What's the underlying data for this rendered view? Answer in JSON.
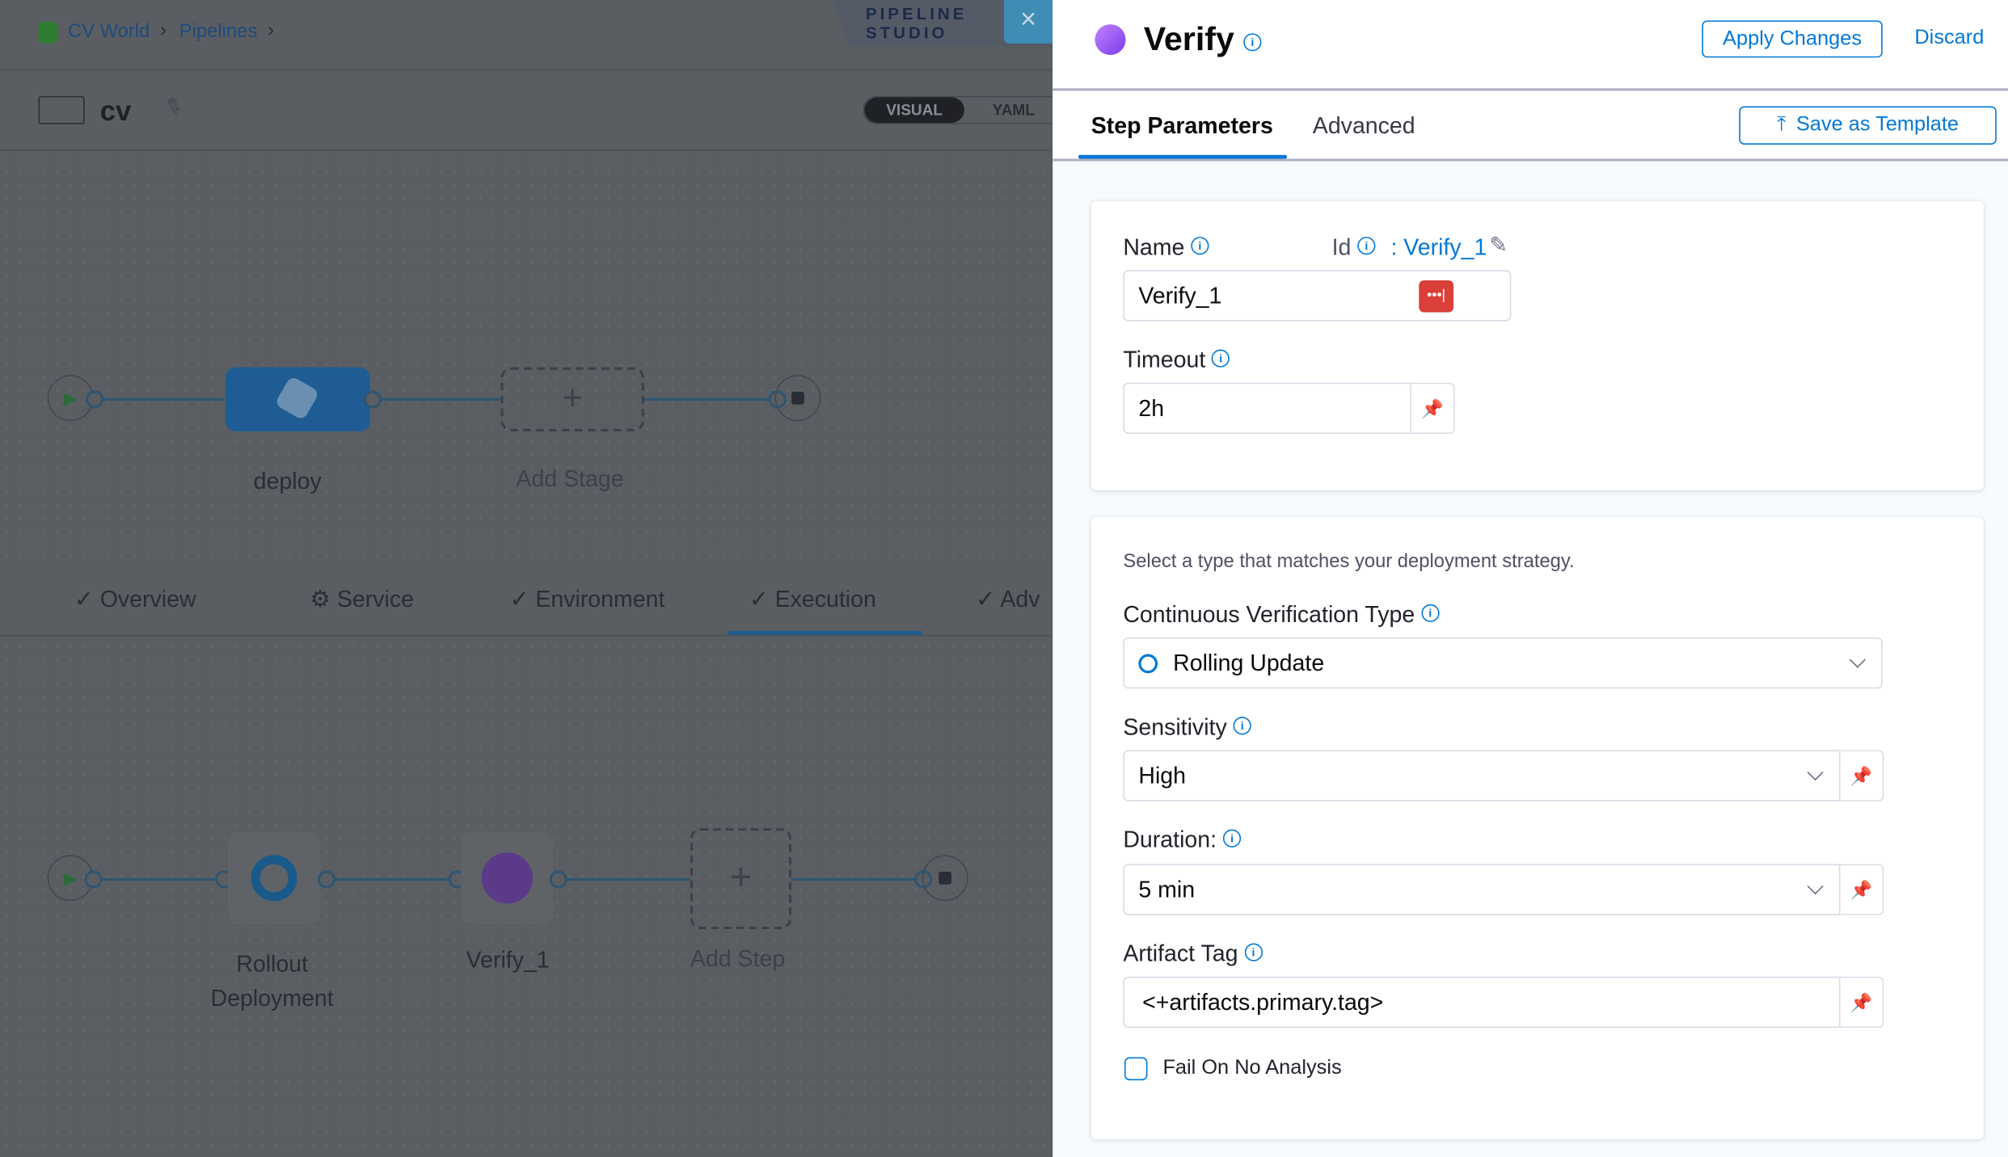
{
  "breadcrumb": {
    "items": [
      "CV World",
      "Pipelines"
    ]
  },
  "studio": {
    "label": "PIPELINE STUDIO",
    "close": "×"
  },
  "pipeline": {
    "name": "cv",
    "view_toggle": [
      "VISUAL",
      "YAML"
    ],
    "active_view": "VISUAL"
  },
  "stages": {
    "items": [
      {
        "label": "deploy"
      }
    ],
    "add_label": "Add Stage"
  },
  "stage_tabs": [
    {
      "label": "Overview",
      "icon": "check-icon"
    },
    {
      "label": "Service",
      "icon": "gear-icon"
    },
    {
      "label": "Environment",
      "icon": "check-icon"
    },
    {
      "label": "Execution",
      "icon": "check-icon",
      "active": true
    },
    {
      "label": "Adv",
      "icon": "check-icon"
    }
  ],
  "steps": {
    "items": [
      {
        "label": "Rollout Deployment"
      },
      {
        "label": "Verify_1"
      }
    ],
    "add_label": "Add Step"
  },
  "panel": {
    "title": "Verify",
    "apply_label": "Apply Changes",
    "discard_label": "Discard",
    "tabs": [
      "Step Parameters",
      "Advanced"
    ],
    "active_tab": "Step Parameters",
    "save_template_label": "Save as Template",
    "name_label": "Name",
    "id_label": "Id",
    "id_value": ": Verify_1",
    "name_value": "Verify_1",
    "timeout_label": "Timeout",
    "timeout_value": "2h",
    "strategy_hint": "Select a type that matches your deployment strategy.",
    "cv_type_label": "Continuous Verification Type",
    "cv_type_value": "Rolling Update",
    "sensitivity_label": "Sensitivity",
    "sensitivity_value": "High",
    "duration_label": "Duration:",
    "duration_value": "5 min",
    "artifact_label": "Artifact Tag",
    "artifact_value": "<+artifacts.primary.tag>",
    "fail_label": "Fail On No Analysis",
    "fail_checked": false
  },
  "colors": {
    "accent": "#0278d5",
    "overlay": "#5a5e63",
    "password_badge": "#d9403a",
    "verify_icon": "#a855f7"
  }
}
